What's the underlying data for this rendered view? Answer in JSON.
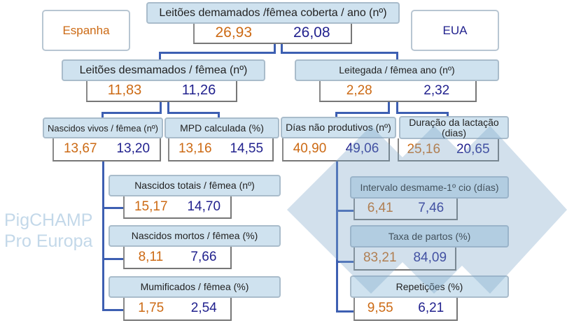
{
  "legend": {
    "spain": "Espanha",
    "usa": "EUA"
  },
  "colors": {
    "spain": "#cc6a14",
    "usa": "#22228e",
    "header_bg": "#cfe2ef",
    "connector": "#3d5fb2"
  },
  "watermark": "PigCHAMP Pro Europa",
  "nodes": {
    "top": {
      "label": "Leitões demamados /fêmea coberta / ano (nº)",
      "spain": "26,93",
      "usa": "26,08"
    },
    "weaned": {
      "label": "Leitões desmamados / fêmea (nº)",
      "spain": "11,83",
      "usa": "11,26"
    },
    "litters": {
      "label": "Leitegada / fêmea ano (nº)",
      "spain": "2,28",
      "usa": "2,32"
    },
    "born_alive": {
      "label": "Nascidos vivos / fêmea (nº)",
      "spain": "13,67",
      "usa": "13,20"
    },
    "mpd": {
      "label": "MPD calculada (%)",
      "spain": "13,16",
      "usa": "14,55"
    },
    "npd": {
      "label": "Días não produtivos (nº)",
      "spain": "40,90",
      "usa": "49,06"
    },
    "lactation": {
      "label": "Duração da lactação (dias)",
      "spain": "25,16",
      "usa": "20,65"
    },
    "total_born": {
      "label": "Nascidos totais / fêmea (nº)",
      "spain": "15,17",
      "usa": "14,70"
    },
    "stillborn": {
      "label": "Nascidos mortos / fêmea (%)",
      "spain": "8,11",
      "usa": "7,66"
    },
    "mummified": {
      "label": "Mumificados / fêmea (%)",
      "spain": "1,75",
      "usa": "2,54"
    },
    "wean_estrus": {
      "label": "Intervalo desmame-1º cio (días)",
      "spain": "6,41",
      "usa": "7,46"
    },
    "farrowing_rate": {
      "label": "Taxa de partos (%)",
      "spain": "83,21",
      "usa": "84,09"
    },
    "repeats": {
      "label": "Repetições (%)",
      "spain": "9,55",
      "usa": "6,21"
    }
  }
}
